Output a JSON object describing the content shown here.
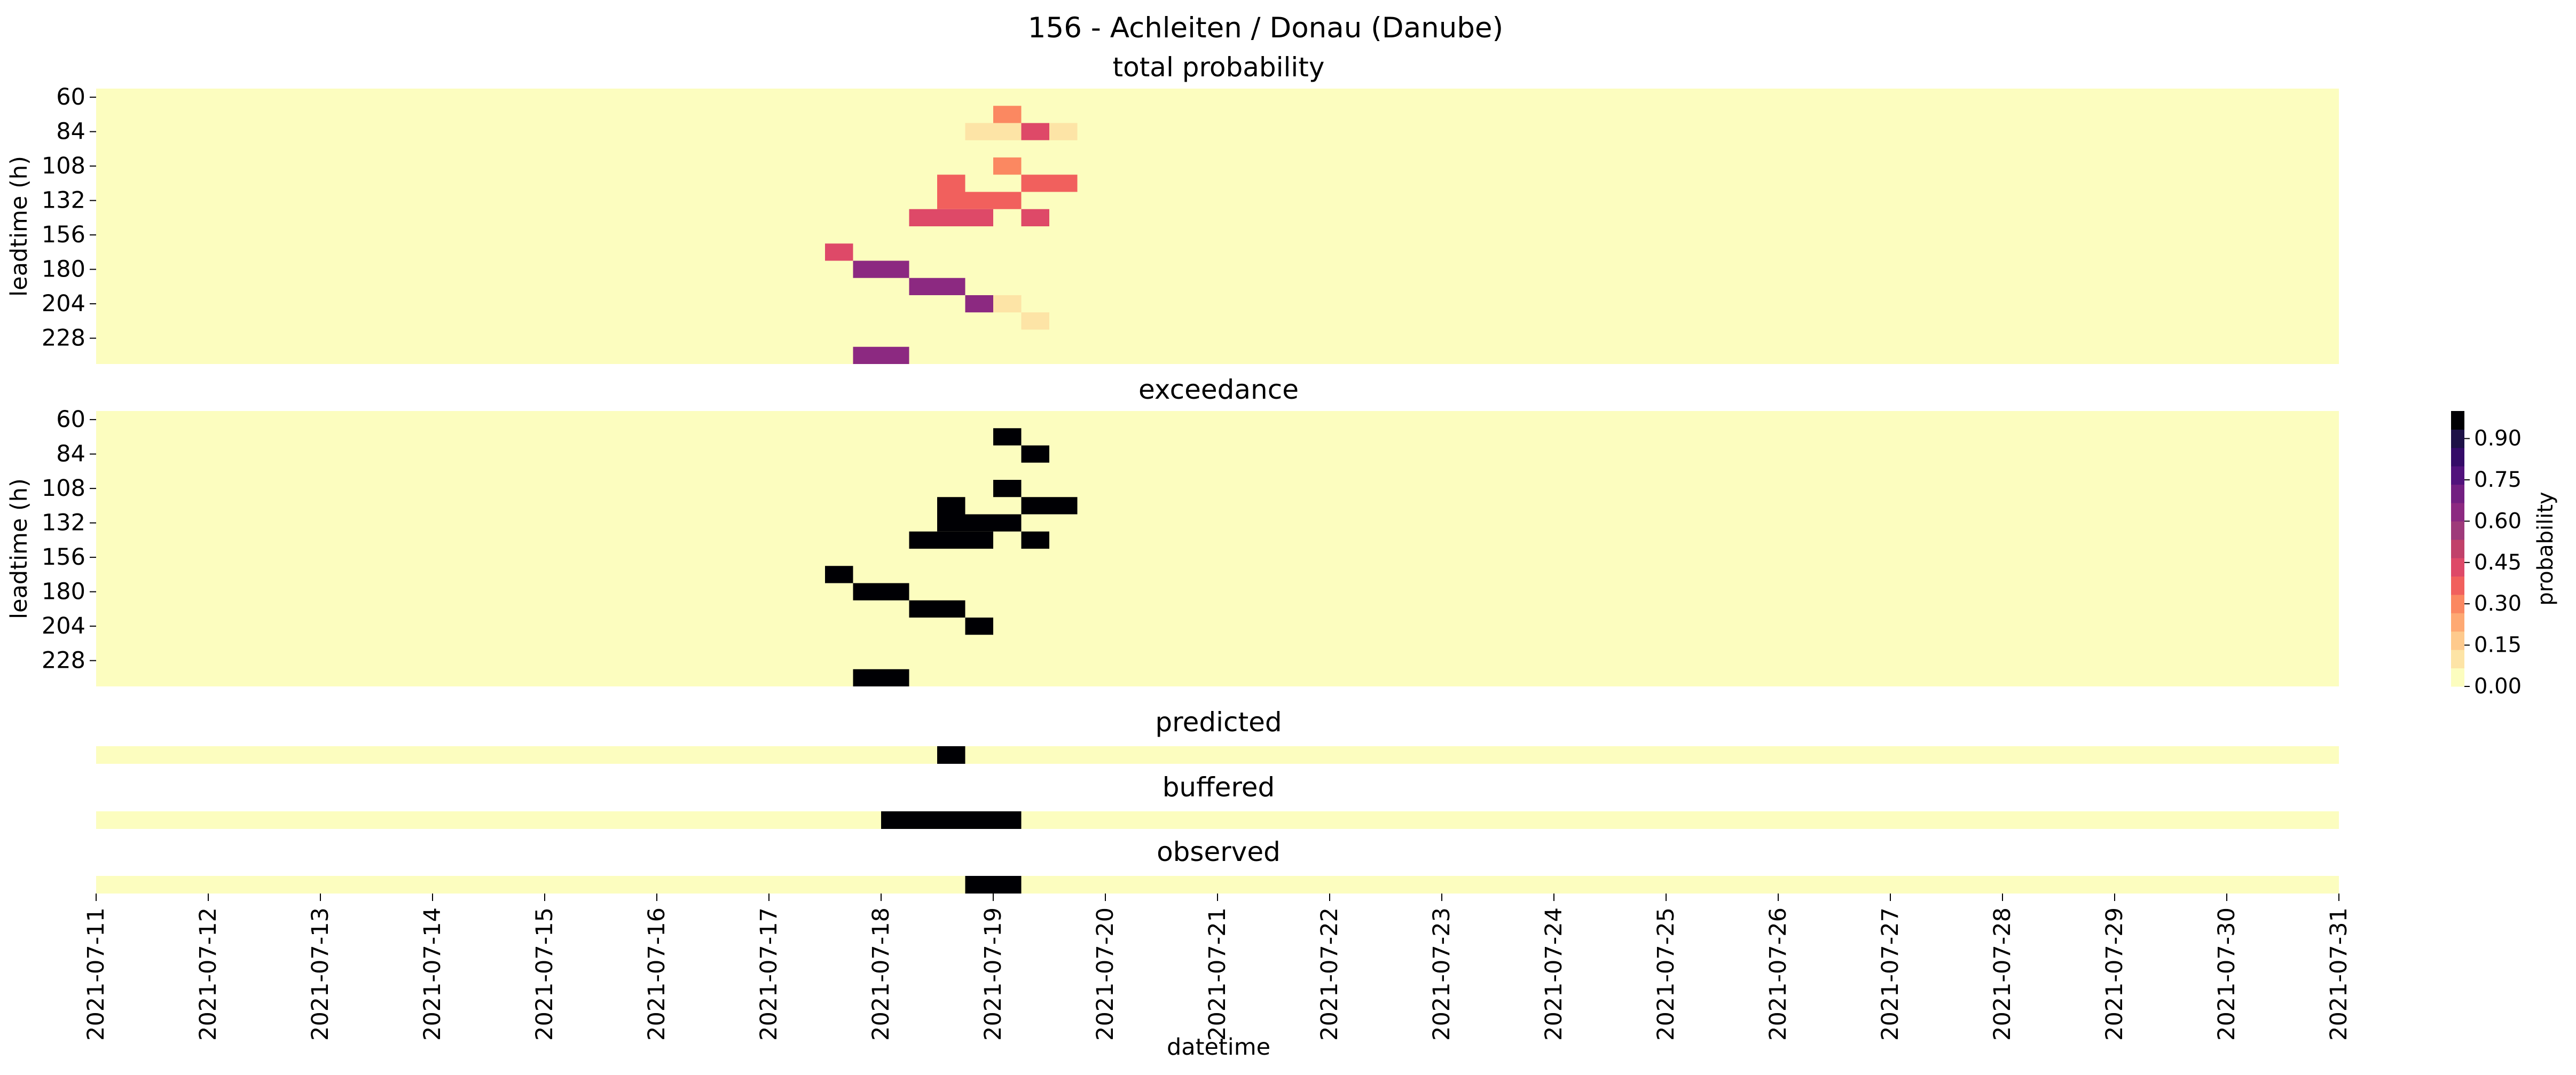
{
  "chart_data": {
    "type": "heatmap",
    "title": "156 - Achleiten / Donau (Danube)",
    "xlabel": "datetime",
    "x_start": "2021-07-11",
    "x_end": "2021-07-31",
    "x_tick_labels": [
      "2021-07-11",
      "2021-07-12",
      "2021-07-13",
      "2021-07-14",
      "2021-07-15",
      "2021-07-16",
      "2021-07-17",
      "2021-07-18",
      "2021-07-19",
      "2021-07-20",
      "2021-07-21",
      "2021-07-22",
      "2021-07-23",
      "2021-07-24",
      "2021-07-25",
      "2021-07-26",
      "2021-07-27",
      "2021-07-28",
      "2021-07-29",
      "2021-07-30",
      "2021-07-31"
    ],
    "colorbar": {
      "label": "probability",
      "ticks": [
        "0.00",
        "0.15",
        "0.30",
        "0.45",
        "0.60",
        "0.75",
        "0.90"
      ],
      "range": [
        0,
        1
      ],
      "colormap": "magma_r",
      "colors": [
        "#fcfdbf",
        "#fde4a6",
        "#feca8d",
        "#fea973",
        "#fb8861",
        "#f1605d",
        "#de4968",
        "#c1416a",
        "#9e3a7a",
        "#8c2981",
        "#721f81",
        "#51127c",
        "#340b68",
        "#1d1147",
        "#000004"
      ]
    },
    "leadtime_ticks": [
      "60",
      "84",
      "108",
      "132",
      "156",
      "180",
      "204",
      "228"
    ],
    "panels": [
      {
        "title": "total probability",
        "ylabel": "leadtime (h)",
        "row_count": 16,
        "cells": [
          {
            "start": "2021-07-19 00:00",
            "end": "2021-07-19 06:00",
            "leadtime": 72,
            "value": 0.3
          },
          {
            "start": "2021-07-18 18:00",
            "end": "2021-07-19 06:00",
            "leadtime": 84,
            "value": 0.05
          },
          {
            "start": "2021-07-19 06:00",
            "end": "2021-07-19 12:00",
            "leadtime": 84,
            "value": 0.4
          },
          {
            "start": "2021-07-19 12:00",
            "end": "2021-07-19 18:00",
            "leadtime": 84,
            "value": 0.05
          },
          {
            "start": "2021-07-19 06:00",
            "end": "2021-07-19 12:00",
            "leadtime": 96,
            "value": 0.03
          },
          {
            "start": "2021-07-19 00:00",
            "end": "2021-07-19 06:00",
            "leadtime": 108,
            "value": 0.3
          },
          {
            "start": "2021-07-18 12:00",
            "end": "2021-07-18 18:00",
            "leadtime": 120,
            "value": 0.35
          },
          {
            "start": "2021-07-19 06:00",
            "end": "2021-07-19 18:00",
            "leadtime": 120,
            "value": 0.35
          },
          {
            "start": "2021-07-18 12:00",
            "end": "2021-07-19 06:00",
            "leadtime": 132,
            "value": 0.35
          },
          {
            "start": "2021-07-18 06:00",
            "end": "2021-07-18 12:00",
            "leadtime": 144,
            "value": 0.4
          },
          {
            "start": "2021-07-18 12:00",
            "end": "2021-07-18 18:00",
            "leadtime": 144,
            "value": 0.45
          },
          {
            "start": "2021-07-18 18:00",
            "end": "2021-07-19 00:00",
            "leadtime": 144,
            "value": 0.4
          },
          {
            "start": "2021-07-19 06:00",
            "end": "2021-07-19 12:00",
            "leadtime": 144,
            "value": 0.4
          },
          {
            "start": "2021-07-17 12:00",
            "end": "2021-07-17 18:00",
            "leadtime": 168,
            "value": 0.4
          },
          {
            "start": "2021-07-17 18:00",
            "end": "2021-07-18 06:00",
            "leadtime": 180,
            "value": 0.62
          },
          {
            "start": "2021-07-18 06:00",
            "end": "2021-07-18 18:00",
            "leadtime": 192,
            "value": 0.67
          },
          {
            "start": "2021-07-18 18:00",
            "end": "2021-07-19 00:00",
            "leadtime": 204,
            "value": 0.67
          },
          {
            "start": "2021-07-19 00:00",
            "end": "2021-07-19 06:00",
            "leadtime": 204,
            "value": 0.06
          },
          {
            "start": "2021-07-19 06:00",
            "end": "2021-07-19 12:00",
            "leadtime": 216,
            "value": 0.06
          },
          {
            "start": "2021-07-17 18:00",
            "end": "2021-07-18 06:00",
            "leadtime": 240,
            "value": 0.62
          }
        ]
      },
      {
        "title": "exceedance",
        "ylabel": "leadtime (h)",
        "row_count": 16,
        "cells": [
          {
            "start": "2021-07-19 00:00",
            "end": "2021-07-19 06:00",
            "leadtime": 72,
            "value": 1
          },
          {
            "start": "2021-07-19 06:00",
            "end": "2021-07-19 12:00",
            "leadtime": 84,
            "value": 1
          },
          {
            "start": "2021-07-19 00:00",
            "end": "2021-07-19 06:00",
            "leadtime": 108,
            "value": 1
          },
          {
            "start": "2021-07-18 12:00",
            "end": "2021-07-18 18:00",
            "leadtime": 120,
            "value": 1
          },
          {
            "start": "2021-07-19 06:00",
            "end": "2021-07-19 18:00",
            "leadtime": 120,
            "value": 1
          },
          {
            "start": "2021-07-18 12:00",
            "end": "2021-07-19 06:00",
            "leadtime": 132,
            "value": 1
          },
          {
            "start": "2021-07-18 06:00",
            "end": "2021-07-19 00:00",
            "leadtime": 144,
            "value": 1
          },
          {
            "start": "2021-07-19 06:00",
            "end": "2021-07-19 12:00",
            "leadtime": 144,
            "value": 1
          },
          {
            "start": "2021-07-17 12:00",
            "end": "2021-07-17 18:00",
            "leadtime": 168,
            "value": 1
          },
          {
            "start": "2021-07-17 18:00",
            "end": "2021-07-18 06:00",
            "leadtime": 180,
            "value": 1
          },
          {
            "start": "2021-07-18 06:00",
            "end": "2021-07-18 18:00",
            "leadtime": 192,
            "value": 1
          },
          {
            "start": "2021-07-18 18:00",
            "end": "2021-07-19 00:00",
            "leadtime": 204,
            "value": 1
          },
          {
            "start": "2021-07-17 18:00",
            "end": "2021-07-18 06:00",
            "leadtime": 240,
            "value": 1
          }
        ]
      },
      {
        "title": "predicted",
        "row_count": 1,
        "cells": [
          {
            "start": "2021-07-18 12:00",
            "end": "2021-07-18 18:00",
            "value": 1
          }
        ]
      },
      {
        "title": "buffered",
        "row_count": 1,
        "cells": [
          {
            "start": "2021-07-18 00:00",
            "end": "2021-07-19 06:00",
            "value": 1
          }
        ]
      },
      {
        "title": "observed",
        "row_count": 1,
        "cells": [
          {
            "start": "2021-07-18 18:00",
            "end": "2021-07-19 06:00",
            "value": 1
          }
        ]
      }
    ]
  }
}
